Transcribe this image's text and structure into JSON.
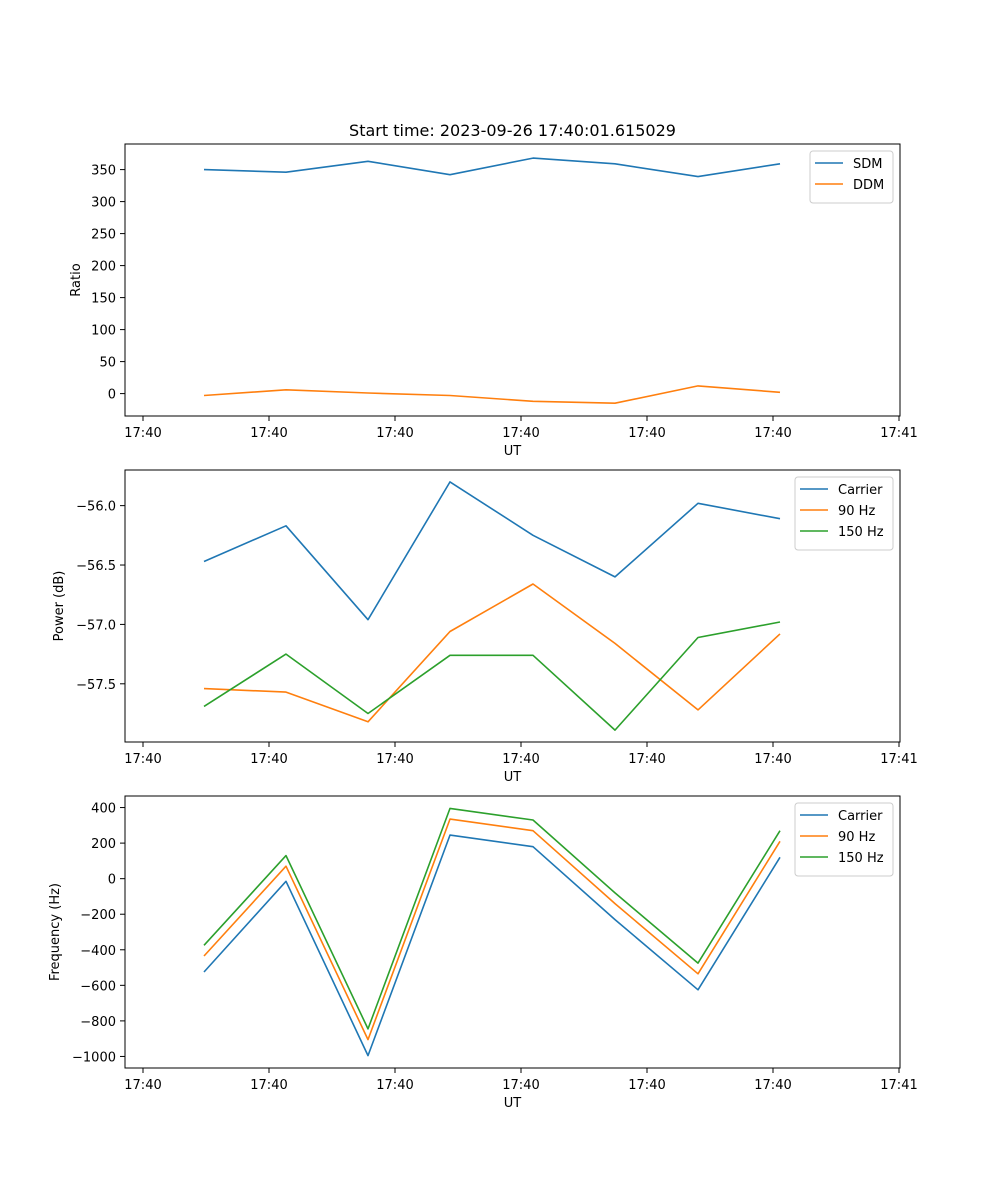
{
  "chart_data": [
    {
      "type": "line",
      "title": "Start time: 2023-09-26 17:40:01.615029",
      "xlabel": "UT",
      "ylabel": "Ratio",
      "x_tick_labels": [
        "17:40",
        "17:40",
        "17:40",
        "17:40",
        "17:40",
        "17:40",
        "17:40",
        "17:41"
      ],
      "y_ticks": [
        0,
        50,
        100,
        150,
        200,
        250,
        300,
        350
      ],
      "ylim": [
        -35,
        390
      ],
      "x_points": 8,
      "series": [
        {
          "name": "SDM",
          "color": "#1f77b4",
          "values": [
            350,
            346,
            363,
            342,
            368,
            359,
            339,
            359
          ]
        },
        {
          "name": "DDM",
          "color": "#ff7f0e",
          "values": [
            -3,
            6,
            1,
            -3,
            -12,
            -15,
            12,
            2
          ]
        }
      ],
      "legend": "top-right"
    },
    {
      "type": "line",
      "title": "",
      "xlabel": "UT",
      "ylabel": "Power (dB)",
      "x_tick_labels": [
        "17:40",
        "17:40",
        "17:40",
        "17:40",
        "17:40",
        "17:40",
        "17:40",
        "17:41"
      ],
      "y_ticks": [
        -57.5,
        -57.0,
        -56.5,
        -56.0
      ],
      "y_tick_labels": [
        "−57.5",
        "−57.0",
        "−56.5",
        "−56.0"
      ],
      "ylim": [
        -57.99,
        -55.7
      ],
      "x_points": 8,
      "series": [
        {
          "name": "Carrier",
          "color": "#1f77b4",
          "values": [
            -56.47,
            -56.17,
            -56.96,
            -55.8,
            -56.25,
            -56.6,
            -55.98,
            -56.11
          ]
        },
        {
          "name": "90 Hz",
          "color": "#ff7f0e",
          "values": [
            -57.54,
            -57.57,
            -57.82,
            -57.06,
            -56.66,
            -57.16,
            -57.72,
            -57.08
          ]
        },
        {
          "name": "150 Hz",
          "color": "#2ca02c",
          "values": [
            -57.69,
            -57.25,
            -57.75,
            -57.26,
            -57.26,
            -57.89,
            -57.11,
            -56.98
          ]
        }
      ],
      "legend": "top-right"
    },
    {
      "type": "line",
      "title": "",
      "xlabel": "UT",
      "ylabel": "Frequency (Hz)",
      "x_tick_labels": [
        "17:40",
        "17:40",
        "17:40",
        "17:40",
        "17:40",
        "17:40",
        "17:40",
        "17:41"
      ],
      "y_ticks": [
        -1000,
        -800,
        -600,
        -400,
        -200,
        0,
        200,
        400
      ],
      "y_tick_labels": [
        "−1000",
        "−800",
        "−600",
        "−400",
        "−200",
        "0",
        "200",
        "400"
      ],
      "ylim": [
        -1065,
        465
      ],
      "x_points": 8,
      "series": [
        {
          "name": "Carrier",
          "color": "#1f77b4",
          "values": [
            -525,
            -15,
            -995,
            245,
            180,
            -230,
            -625,
            120
          ]
        },
        {
          "name": "90 Hz",
          "color": "#ff7f0e",
          "values": [
            -435,
            70,
            -905,
            335,
            270,
            -140,
            -535,
            210
          ]
        },
        {
          "name": "150 Hz",
          "color": "#2ca02c",
          "values": [
            -375,
            130,
            -845,
            395,
            330,
            -80,
            -475,
            270
          ]
        }
      ],
      "legend": "top-right"
    }
  ]
}
